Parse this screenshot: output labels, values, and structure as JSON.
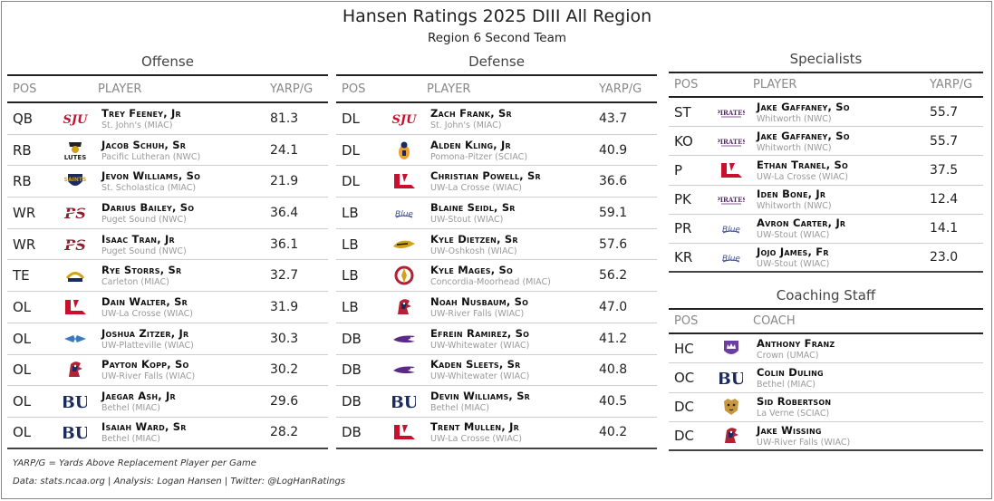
{
  "title": "Hansen Ratings 2025 DIII All Region",
  "subtitle": "Region 6 Second Team",
  "offense": {
    "title": "Offense",
    "headers": {
      "pos": "POS",
      "player": "PLAYER",
      "value": "YARP/G"
    },
    "rows": [
      {
        "pos": "QB",
        "name": "Trey Feeney, Jr",
        "school": "St. John's (MIAC)",
        "value": "81.3",
        "logo": "sju-logo"
      },
      {
        "pos": "RB",
        "name": "Jacob Schuh, Sr",
        "school": "Pacific Lutheran (NWC)",
        "value": "24.1",
        "logo": "lutes-logo"
      },
      {
        "pos": "RB",
        "name": "Jevon Williams, So",
        "school": "St. Scholastica (MIAC)",
        "value": "21.9",
        "logo": "saints-logo"
      },
      {
        "pos": "WR",
        "name": "Darius Bailey, So",
        "school": "Puget Sound (NWC)",
        "value": "36.4",
        "logo": "ps-logo"
      },
      {
        "pos": "WR",
        "name": "Isaac Tran, Jr",
        "school": "Puget Sound (NWC)",
        "value": "36.1",
        "logo": "ps-logo"
      },
      {
        "pos": "TE",
        "name": "Rye Storrs, Sr",
        "school": "Carleton (MIAC)",
        "value": "32.7",
        "logo": "carleton-logo"
      },
      {
        "pos": "OL",
        "name": "Dain Walter, Sr",
        "school": "UW-La Crosse (WIAC)",
        "value": "31.9",
        "logo": "uwl-logo"
      },
      {
        "pos": "OL",
        "name": "Joshua Zitzer, Jr",
        "school": "UW-Platteville (WIAC)",
        "value": "30.3",
        "logo": "platteville-logo"
      },
      {
        "pos": "OL",
        "name": "Payton Kopp, So",
        "school": "UW-River Falls (WIAC)",
        "value": "30.2",
        "logo": "riverfalls-logo"
      },
      {
        "pos": "OL",
        "name": "Jaegar Ash, Jr",
        "school": "Bethel (MIAC)",
        "value": "29.6",
        "logo": "bethel-logo"
      },
      {
        "pos": "OL",
        "name": "Isaiah Ward, Sr",
        "school": "Bethel (MIAC)",
        "value": "28.2",
        "logo": "bethel-logo"
      }
    ]
  },
  "defense": {
    "title": "Defense",
    "headers": {
      "pos": "POS",
      "player": "PLAYER",
      "value": "YARP/G"
    },
    "rows": [
      {
        "pos": "DL",
        "name": "Zach Frank, Sr",
        "school": "St. John's (MIAC)",
        "value": "43.7",
        "logo": "sju-logo"
      },
      {
        "pos": "DL",
        "name": "Alden Kling, Jr",
        "school": "Pomona-Pitzer (SCIAC)",
        "value": "40.9",
        "logo": "sagehen-logo"
      },
      {
        "pos": "DL",
        "name": "Christian Powell, Sr",
        "school": "UW-La Crosse (WIAC)",
        "value": "36.6",
        "logo": "uwl-logo"
      },
      {
        "pos": "LB",
        "name": "Blaine Seidl, Sr",
        "school": "UW-Stout (WIAC)",
        "value": "59.1",
        "logo": "stout-logo"
      },
      {
        "pos": "LB",
        "name": "Kyle Dietzen, Sr",
        "school": "UW-Oshkosh (WIAC)",
        "value": "57.6",
        "logo": "titans-logo"
      },
      {
        "pos": "LB",
        "name": "Kyle Mages, So",
        "school": "Concordia-Moorhead (MIAC)",
        "value": "56.2",
        "logo": "concordia-logo"
      },
      {
        "pos": "LB",
        "name": "Noah Nusbaum, So",
        "school": "UW-River Falls (WIAC)",
        "value": "47.0",
        "logo": "riverfalls-logo"
      },
      {
        "pos": "DB",
        "name": "Efrein Ramirez, So",
        "school": "UW-Whitewater (WIAC)",
        "value": "41.2",
        "logo": "warhawk-logo"
      },
      {
        "pos": "DB",
        "name": "Kaden Sleets, Sr",
        "school": "UW-Whitewater (WIAC)",
        "value": "40.8",
        "logo": "warhawk-logo"
      },
      {
        "pos": "DB",
        "name": "Devin Williams, Sr",
        "school": "Bethel (MIAC)",
        "value": "40.5",
        "logo": "bethel-logo"
      },
      {
        "pos": "DB",
        "name": "Trent Mullen, Jr",
        "school": "UW-La Crosse (WIAC)",
        "value": "40.2",
        "logo": "uwl-logo"
      }
    ]
  },
  "specialists": {
    "title": "Specialists",
    "headers": {
      "pos": "POS",
      "player": "PLAYER",
      "value": "YARP/G"
    },
    "rows": [
      {
        "pos": "ST",
        "name": "Jake Gaffaney, So",
        "school": "Whitworth (NWC)",
        "value": "55.7",
        "logo": "pirates-logo"
      },
      {
        "pos": "KO",
        "name": "Jake Gaffaney, So",
        "school": "Whitworth (NWC)",
        "value": "55.7",
        "logo": "pirates-logo"
      },
      {
        "pos": "P",
        "name": "Ethan Tranel, So",
        "school": "UW-La Crosse (WIAC)",
        "value": "37.5",
        "logo": "uwl-logo"
      },
      {
        "pos": "PK",
        "name": "Iden Bone, Jr",
        "school": "Whitworth (NWC)",
        "value": "12.4",
        "logo": "pirates-logo"
      },
      {
        "pos": "PR",
        "name": "Avron Carter, Jr",
        "school": "UW-Stout (WIAC)",
        "value": "14.1",
        "logo": "stout-logo"
      },
      {
        "pos": "KR",
        "name": "Jojo James, Fr",
        "school": "UW-Stout (WIAC)",
        "value": "23.0",
        "logo": "stout-logo"
      }
    ]
  },
  "coaching": {
    "title": "Coaching Staff",
    "headers": {
      "pos": "POS",
      "coach": "COACH"
    },
    "rows": [
      {
        "pos": "HC",
        "name": "Anthony Franz",
        "school": "Crown (UMAC)",
        "logo": "crown-logo"
      },
      {
        "pos": "OC",
        "name": "Colin Duling",
        "school": "Bethel (MIAC)",
        "logo": "bethel-logo"
      },
      {
        "pos": "DC",
        "name": "Sid Robertson",
        "school": "La Verne (SCIAC)",
        "logo": "leopard-logo"
      },
      {
        "pos": "DC",
        "name": "Jake Wissing",
        "school": "UW-River Falls (WIAC)",
        "logo": "riverfalls-logo"
      }
    ]
  },
  "footnotes": {
    "definition": "YARP/G = Yards Above Replacement Player per Game",
    "credits": "Data: stats.ncaa.org | Analysis: Logan Hansen | Twitter: @LogHanRatings"
  },
  "colors": {
    "sju": "#c8102e",
    "uwl": "#c8102e",
    "puget": "#8b1d2c",
    "bethel": "#1a2b5c",
    "stout": "#3d4f8f",
    "warhawk": "#5b2a86",
    "pirates": "#5a2a6b",
    "crown": "#6a3fa0"
  }
}
